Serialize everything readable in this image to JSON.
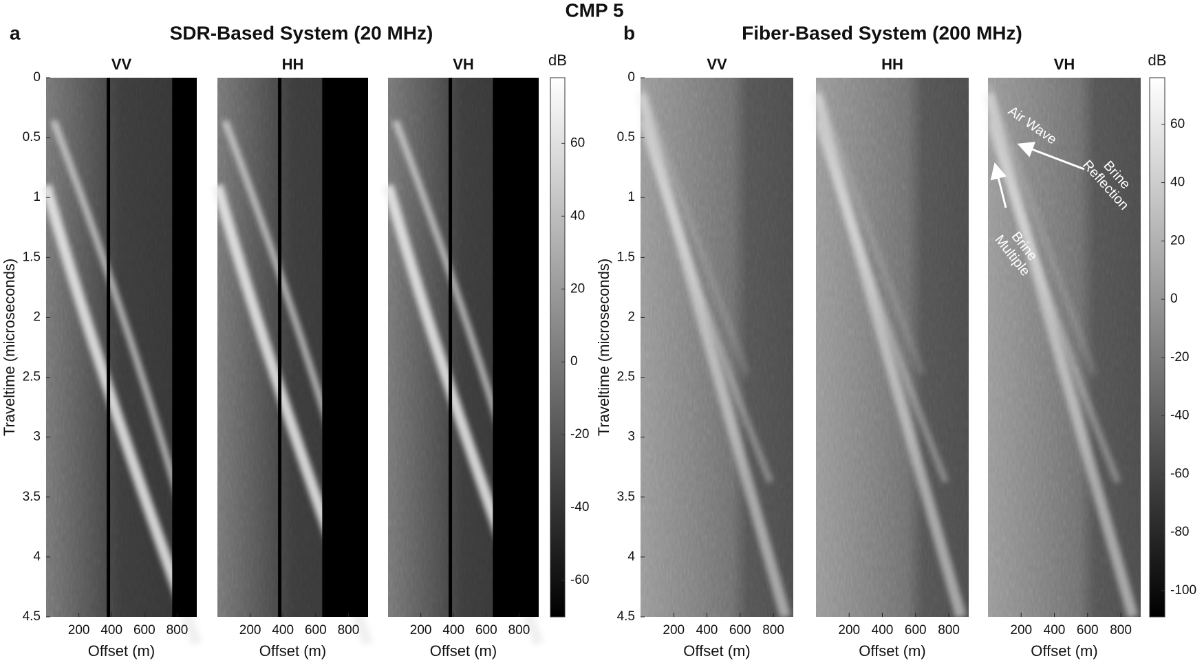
{
  "title": "CMP 5",
  "chart_data": [
    {
      "type": "heatmap",
      "label": "a",
      "title": "SDR-Based System (20 MHz)",
      "subplots": [
        "VV",
        "HH",
        "VH"
      ],
      "xlabel": "Offset (m)",
      "ylabel": "Traveltime (microseconds)",
      "xlim": [
        0,
        920
      ],
      "xticks": [
        200,
        400,
        600,
        800
      ],
      "ylim": [
        0,
        4.5
      ],
      "yticks": [
        0,
        0.5,
        1,
        1.5,
        2,
        2.5,
        3,
        3.5,
        4,
        4.5
      ],
      "y_reversed": true,
      "colorbar": {
        "label": "dB",
        "lim": [
          -70,
          78
        ],
        "ticks": [
          -60,
          -40,
          -20,
          0,
          20,
          40,
          60
        ]
      },
      "annotations": []
    },
    {
      "type": "heatmap",
      "label": "b",
      "title": "Fiber-Based System (200 MHz)",
      "subplots": [
        "VV",
        "HH",
        "VH"
      ],
      "xlabel": "Offset (m)",
      "ylabel": "Traveltime (microseconds)",
      "xlim": [
        0,
        920
      ],
      "xticks": [
        200,
        400,
        600,
        800
      ],
      "ylim": [
        0,
        4.5
      ],
      "yticks": [
        0,
        0.5,
        1,
        1.5,
        2,
        2.5,
        3,
        3.5,
        4,
        4.5
      ],
      "y_reversed": true,
      "colorbar": {
        "label": "dB",
        "lim": [
          -109,
          76
        ],
        "ticks": [
          -100,
          -80,
          -60,
          -40,
          -20,
          0,
          20,
          40,
          60
        ]
      },
      "annotations": [
        "Air Wave",
        "Brine Reflection",
        "Brine Multiple"
      ]
    }
  ]
}
